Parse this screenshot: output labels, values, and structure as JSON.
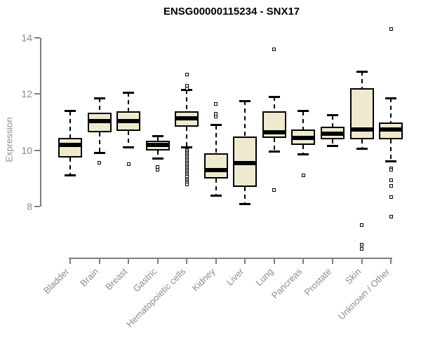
{
  "title": "ENSG00000115234 - SNX17",
  "chart_data": {
    "type": "boxplot",
    "title": "ENSG00000115234 - SNX17",
    "xlabel": "",
    "ylabel": "Expression",
    "yticks": [
      8,
      10,
      12,
      14
    ],
    "ylim": [
      6.2,
      14.5
    ],
    "grid": false,
    "legend": "none",
    "categories": [
      "Bladder",
      "Brain",
      "Breast",
      "Gastric",
      "Hematopoietic cells",
      "Kidney",
      "Liver",
      "Lung",
      "Pancreas",
      "Prostate",
      "Skin",
      "Unknown / Other"
    ],
    "series": [
      {
        "category": "Bladder",
        "whisker_low": 9.1,
        "q1": 9.75,
        "median": 10.2,
        "q3": 10.45,
        "whisker_high": 11.4,
        "outliers": []
      },
      {
        "category": "Brain",
        "whisker_low": 9.9,
        "q1": 10.65,
        "median": 11.05,
        "q3": 11.35,
        "whisker_high": 11.85,
        "outliers": [
          9.55
        ]
      },
      {
        "category": "Breast",
        "whisker_low": 10.1,
        "q1": 10.7,
        "median": 11.05,
        "q3": 11.4,
        "whisker_high": 12.05,
        "outliers": [
          9.5
        ]
      },
      {
        "category": "Gastric",
        "whisker_low": 9.7,
        "q1": 10.0,
        "median": 10.2,
        "q3": 10.35,
        "whisker_high": 10.5,
        "outliers": [
          9.4,
          9.3
        ]
      },
      {
        "category": "Hematopoietic cells",
        "whisker_low": 10.1,
        "q1": 10.85,
        "median": 11.15,
        "q3": 11.4,
        "whisker_high": 12.15,
        "outliers": [
          12.7,
          12.3,
          12.2,
          10.0,
          9.95,
          9.9,
          9.85,
          9.8,
          9.75,
          9.7,
          9.65,
          9.6,
          9.55,
          9.5,
          9.45,
          9.4,
          9.35,
          9.3,
          9.25,
          9.2,
          9.15,
          9.1,
          9.05,
          9.0,
          8.95,
          8.9,
          8.85,
          8.8
        ]
      },
      {
        "category": "Kidney",
        "whisker_low": 8.4,
        "q1": 9.0,
        "median": 9.3,
        "q3": 9.9,
        "whisker_high": 10.9,
        "outliers": [
          11.65,
          11.3,
          11.2
        ]
      },
      {
        "category": "Liver",
        "whisker_low": 8.1,
        "q1": 8.7,
        "median": 9.55,
        "q3": 10.5,
        "whisker_high": 11.75,
        "outliers": []
      },
      {
        "category": "Lung",
        "whisker_low": 9.95,
        "q1": 10.45,
        "median": 10.65,
        "q3": 11.4,
        "whisker_high": 11.9,
        "outliers": [
          13.6,
          8.6
        ]
      },
      {
        "category": "Pancreas",
        "whisker_low": 9.85,
        "q1": 10.2,
        "median": 10.45,
        "q3": 10.75,
        "whisker_high": 11.4,
        "outliers": [
          9.1
        ]
      },
      {
        "category": "Prostate",
        "whisker_low": 10.15,
        "q1": 10.4,
        "median": 10.6,
        "q3": 10.85,
        "whisker_high": 11.25,
        "outliers": []
      },
      {
        "category": "Skin",
        "whisker_low": 10.05,
        "q1": 10.4,
        "median": 10.75,
        "q3": 12.2,
        "whisker_high": 12.8,
        "outliers": [
          7.35,
          6.65,
          6.5
        ]
      },
      {
        "category": "Unknown / Other",
        "whisker_low": 9.6,
        "q1": 10.4,
        "median": 10.75,
        "q3": 11.0,
        "whisker_high": 11.85,
        "outliers": [
          14.3,
          9.35,
          9.3,
          8.95,
          8.75,
          8.35,
          7.65
        ]
      }
    ],
    "colors": {
      "box_fill": "#EFE9CE",
      "box_border": "#000000",
      "median": "#000000",
      "whisker": "#000000",
      "axis": "#7f7f7f",
      "tick_label": "#8c8c8c",
      "title": "#000000",
      "background": "#ffffff"
    }
  }
}
